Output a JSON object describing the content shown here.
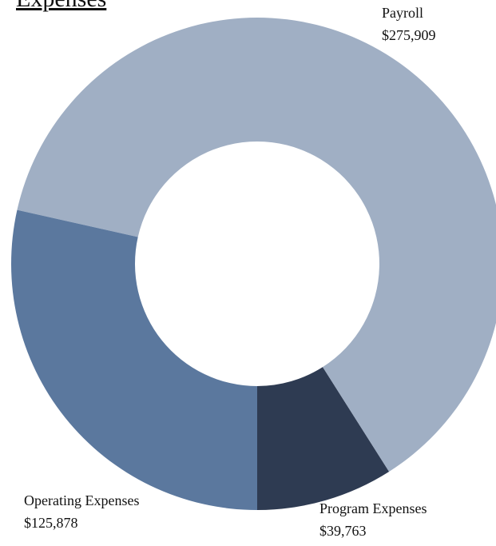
{
  "chart_data": {
    "type": "donut",
    "title": "Expenses",
    "categories": [
      "Program Expenses",
      "Payroll",
      "Operating Expenses"
    ],
    "values": [
      39763,
      275909,
      125878
    ],
    "value_labels": [
      "$39,763",
      "$275,909",
      "$125,878"
    ],
    "colors": [
      "#2e3b52",
      "#a0afc4",
      "#5b789e"
    ]
  }
}
